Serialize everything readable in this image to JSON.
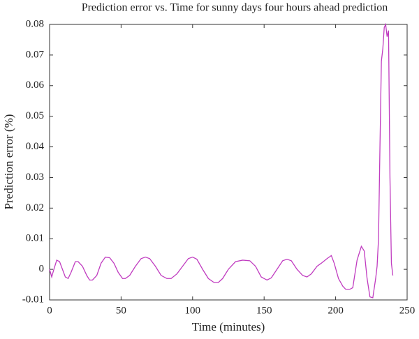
{
  "chart_data": {
    "type": "line",
    "title": "Prediction error vs. Time for sunny days four hours ahead prediction",
    "xlabel": "Time (minutes)",
    "ylabel": "Prediction error (%)",
    "x": [
      0,
      1.5,
      3,
      5,
      7,
      9,
      11,
      13,
      15,
      18,
      20,
      23,
      26,
      28,
      30,
      33,
      36,
      39,
      42,
      45,
      48,
      51,
      53,
      56,
      60,
      64,
      67,
      70,
      74,
      78,
      82,
      85,
      89,
      93,
      97,
      100,
      103,
      107,
      111,
      115,
      118,
      121,
      125,
      130,
      135,
      140,
      144,
      148,
      152,
      155,
      159,
      163,
      166,
      169,
      173,
      177,
      180,
      183,
      187,
      190,
      194,
      197,
      199,
      202,
      205,
      207,
      210,
      212,
      213,
      215,
      218,
      220,
      222,
      224,
      226,
      228,
      229,
      230,
      231,
      232,
      233,
      234,
      235,
      236,
      237,
      238,
      239,
      240
    ],
    "series": [
      {
        "name": "Prediction error",
        "color": "#c03cc0",
        "values": [
          0,
          -0.0025,
          0,
          0.003,
          0.0025,
          0,
          -0.0025,
          -0.003,
          -0.001,
          0.0025,
          0.0025,
          0.001,
          -0.002,
          -0.0035,
          -0.0035,
          -0.002,
          0.002,
          0.004,
          0.0038,
          0.002,
          -0.001,
          -0.003,
          -0.003,
          -0.002,
          0.001,
          0.0035,
          0.004,
          0.0035,
          0.001,
          -0.002,
          -0.003,
          -0.003,
          -0.0015,
          0.001,
          0.0035,
          0.004,
          0.0033,
          0,
          -0.003,
          -0.0043,
          -0.0043,
          -0.003,
          0,
          0.0025,
          0.003,
          0.0028,
          0.001,
          -0.0025,
          -0.0035,
          -0.0028,
          0,
          0.0028,
          0.0033,
          0.0028,
          0,
          -0.002,
          -0.0025,
          -0.0015,
          0.001,
          0.002,
          0.0035,
          0.0045,
          0.002,
          -0.003,
          -0.0055,
          -0.0065,
          -0.0065,
          -0.006,
          -0.003,
          0.003,
          0.0075,
          0.006,
          -0.003,
          -0.009,
          -0.0093,
          -0.003,
          0.001,
          0.01,
          0.04,
          0.068,
          0.072,
          0.079,
          0.08,
          0.076,
          0.078,
          0.03,
          0.002,
          -0.002
        ]
      }
    ],
    "xlim": [
      0,
      250
    ],
    "xticks": [
      0,
      50,
      100,
      150,
      200,
      250
    ],
    "ylim": [
      -0.01,
      0.08
    ],
    "yticks": [
      -0.01,
      0,
      0.01,
      0.02,
      0.03,
      0.04,
      0.05,
      0.06,
      0.07,
      0.08
    ]
  }
}
